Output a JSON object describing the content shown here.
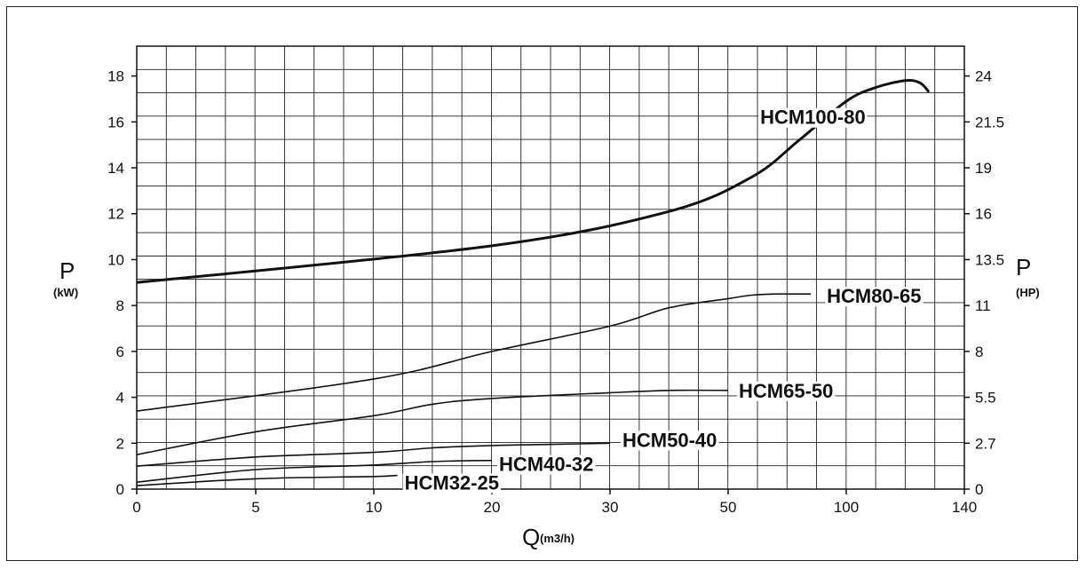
{
  "chart_data": {
    "type": "line",
    "title": "",
    "xlabel": "Q",
    "xlabel_unit": "(m3/h)",
    "ylabel_left": "P",
    "ylabel_left_unit": "(kW)",
    "ylabel_right": "P",
    "ylabel_right_unit": "(HP)",
    "xlim": [
      0,
      140
    ],
    "ylim": [
      0,
      19.3
    ],
    "x_ticks": [
      "0",
      "5",
      "10",
      "20",
      "30",
      "50",
      "100",
      "140"
    ],
    "y_ticks_left": [
      "0",
      "2",
      "4",
      "6",
      "8",
      "10",
      "12",
      "14",
      "16",
      "18"
    ],
    "y_ticks_right": [
      "0",
      "2.7",
      "5.5",
      "8",
      "11",
      "13.5",
      "16",
      "19",
      "21.5",
      "24"
    ],
    "grid": true,
    "series": [
      {
        "name": "HCM100-80",
        "x": [
          0,
          20,
          40,
          60,
          80,
          100,
          110,
          120,
          125,
          128
        ],
        "y": [
          9.0,
          10.6,
          12.1,
          13.6,
          15.2,
          16.9,
          17.5,
          17.8,
          17.7,
          17.3
        ]
      },
      {
        "name": "HCM80-65",
        "x": [
          0,
          10,
          20,
          30,
          40,
          50,
          60,
          70,
          80,
          85
        ],
        "y": [
          3.4,
          4.8,
          6.0,
          7.1,
          7.9,
          8.3,
          8.45,
          8.5,
          8.5,
          8.5
        ]
      },
      {
        "name": "HCM65-50",
        "x": [
          0,
          5,
          10,
          15,
          20,
          30,
          40,
          50
        ],
        "y": [
          1.5,
          2.5,
          3.2,
          3.7,
          3.95,
          4.2,
          4.3,
          4.3
        ]
      },
      {
        "name": "HCM50-40",
        "x": [
          0,
          5,
          10,
          15,
          20,
          25,
          30
        ],
        "y": [
          1.0,
          1.4,
          1.6,
          1.8,
          1.9,
          1.95,
          2.0
        ]
      },
      {
        "name": "HCM40-32",
        "x": [
          0,
          5,
          10,
          15,
          20
        ],
        "y": [
          0.3,
          0.85,
          1.05,
          1.2,
          1.25
        ]
      },
      {
        "name": "HCM32-25",
        "x": [
          0,
          5,
          10,
          12
        ],
        "y": [
          0.15,
          0.45,
          0.55,
          0.6
        ]
      }
    ]
  }
}
